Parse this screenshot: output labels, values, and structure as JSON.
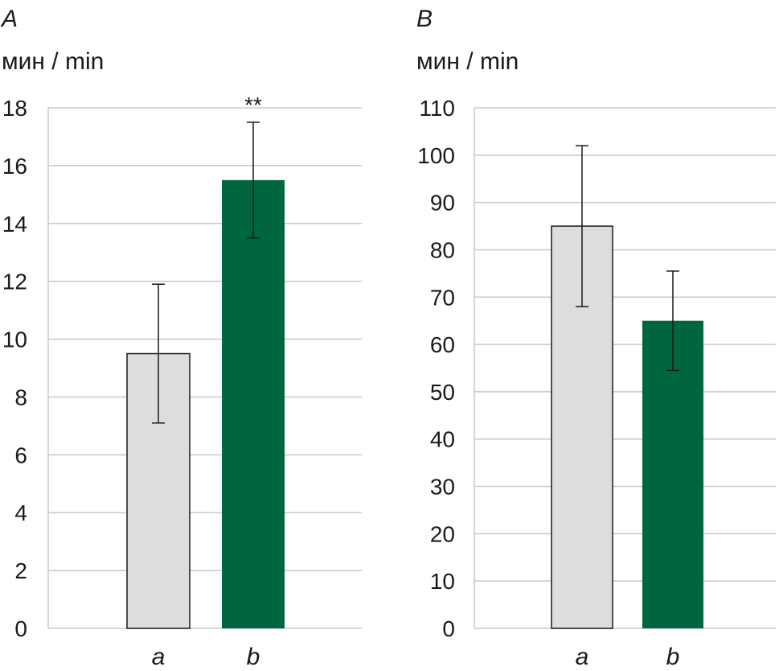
{
  "chart_data": [
    {
      "type": "bar",
      "panel": "A",
      "ylabel": "мин / min",
      "categories": [
        "a",
        "b"
      ],
      "values": [
        9.5,
        15.5
      ],
      "error_low": [
        7.1,
        13.5
      ],
      "error_high": [
        11.9,
        17.5
      ],
      "ylim": [
        0,
        18
      ],
      "yticks": [
        0,
        2,
        4,
        6,
        8,
        10,
        12,
        14,
        16,
        18
      ],
      "colors": [
        "#dcdddf",
        "#006640"
      ],
      "annotations": [
        {
          "category": "b",
          "text": "**"
        }
      ],
      "grid": true
    },
    {
      "type": "bar",
      "panel": "B",
      "ylabel": "мин / min",
      "categories": [
        "a",
        "b"
      ],
      "values": [
        85,
        65
      ],
      "error_low": [
        68,
        54.5
      ],
      "error_high": [
        102,
        75.5
      ],
      "ylim": [
        0,
        110
      ],
      "yticks": [
        0,
        10,
        20,
        30,
        40,
        50,
        60,
        70,
        80,
        90,
        100,
        110
      ],
      "colors": [
        "#dcdddf",
        "#006640"
      ],
      "annotations": [],
      "grid": true
    }
  ]
}
